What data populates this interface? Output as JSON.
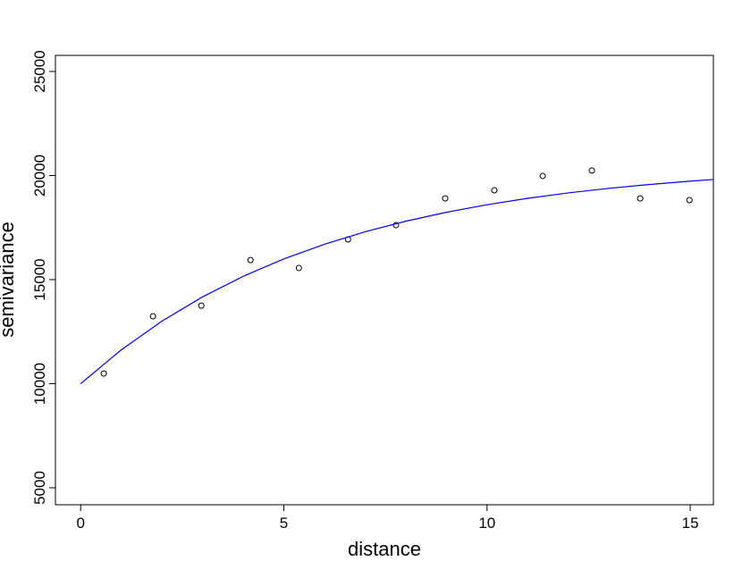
{
  "chart_data": {
    "type": "scatter",
    "x_label": "distance",
    "y_label": "semivariance",
    "xlim": [
      -0.62,
      15.57
    ],
    "ylim": [
      4185,
      25772
    ],
    "xticks": [
      0,
      5,
      10,
      15
    ],
    "yticks": [
      5000,
      10000,
      15000,
      20000,
      25000
    ],
    "series": [
      {
        "type": "scatter",
        "color": "#000000",
        "x": [
          0.57,
          1.78,
          2.97,
          4.18,
          5.37,
          6.58,
          7.76,
          8.97,
          10.18,
          11.37,
          12.58,
          13.77,
          14.98
        ],
        "values": [
          10490,
          13240,
          13750,
          15940,
          15560,
          16930,
          17620,
          18900,
          19290,
          19980,
          20240,
          18900,
          18820
        ]
      },
      {
        "type": "line",
        "color": "#0000ff",
        "x": [
          0,
          1,
          2,
          3,
          4,
          5,
          6,
          7,
          8,
          9,
          10,
          11,
          12,
          13,
          14,
          15,
          15.57
        ],
        "values": [
          10000,
          11625,
          13005,
          14171,
          15158,
          15993,
          16700,
          17299,
          17806,
          18235,
          18598,
          18905,
          19166,
          19385,
          19572,
          19730,
          19809
        ]
      }
    ]
  }
}
